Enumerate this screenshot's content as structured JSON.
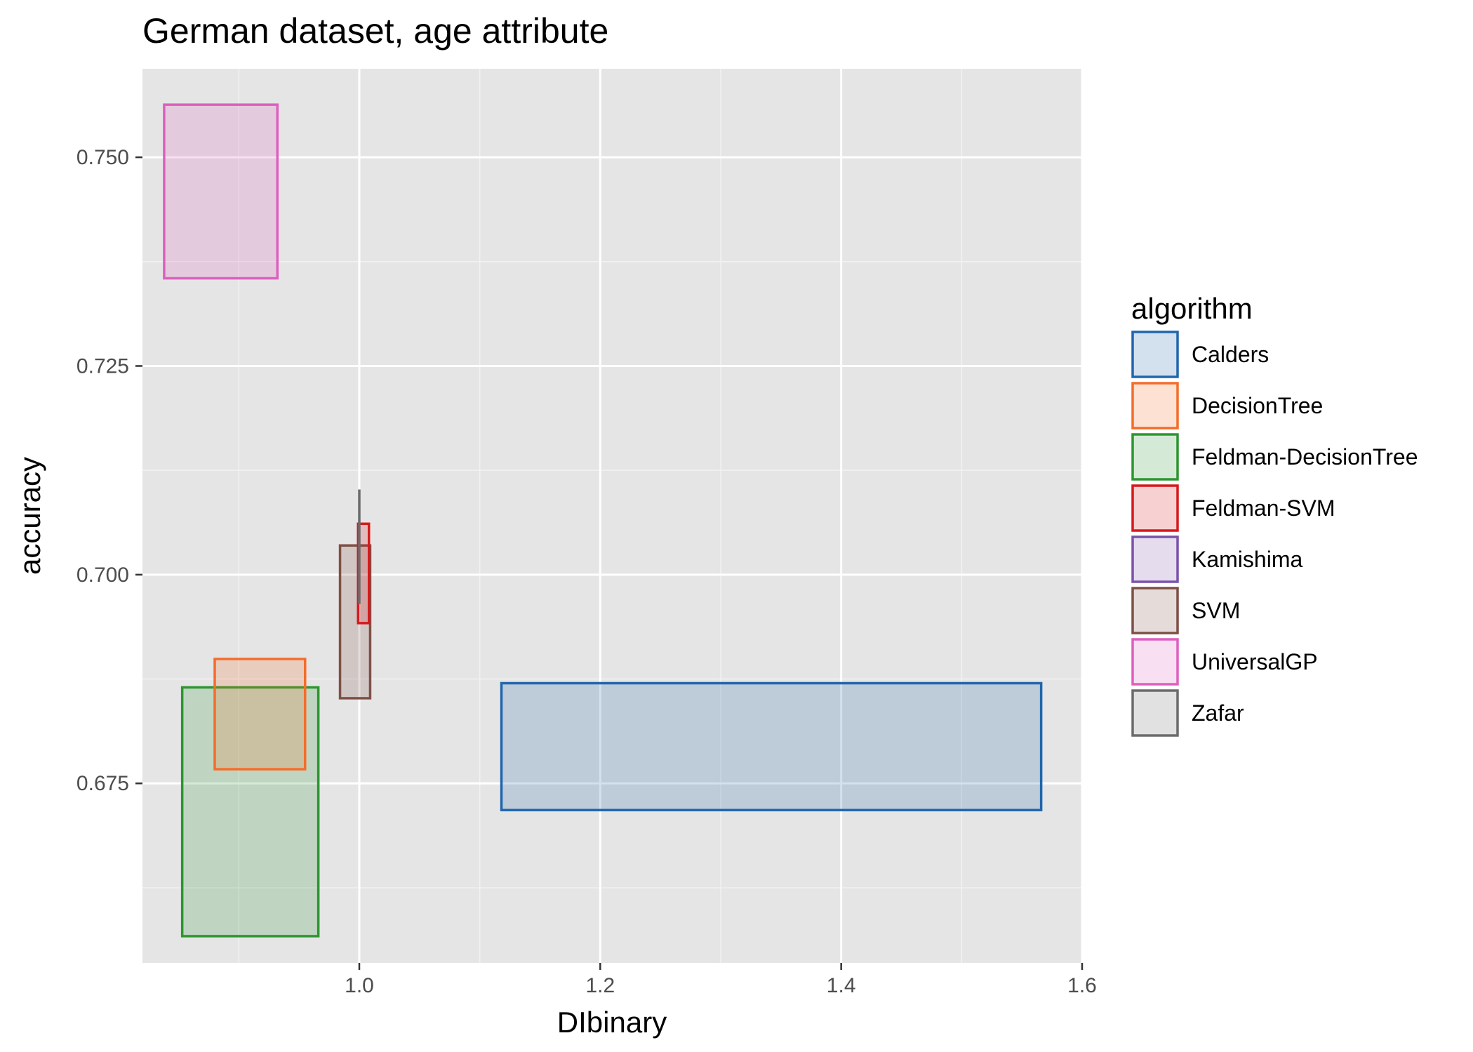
{
  "chart_data": {
    "type": "rect-ranges",
    "title": "German dataset, age attribute",
    "xlabel": "DIbinary",
    "ylabel": "accuracy",
    "xlim": [
      0.82,
      1.6
    ],
    "ylim": [
      0.6535,
      0.7606
    ],
    "x_ticks": [
      1.0,
      1.2,
      1.4,
      1.6
    ],
    "x_tick_labels": [
      "1.0",
      "1.2",
      "1.4",
      "1.6"
    ],
    "y_ticks": [
      0.675,
      0.7,
      0.725,
      0.75
    ],
    "y_tick_labels": [
      "0.675",
      "0.700",
      "0.725",
      "0.750"
    ],
    "grid": true,
    "legend": {
      "title": "algorithm",
      "position": "right"
    },
    "series": [
      {
        "name": "Calders",
        "color": "#2166ac",
        "xmin": 1.118,
        "xmax": 1.566,
        "ymin": 0.6718,
        "ymax": 0.687
      },
      {
        "name": "DecisionTree",
        "color": "#f46d2a",
        "xmin": 0.88,
        "xmax": 0.955,
        "ymin": 0.6767,
        "ymax": 0.6899
      },
      {
        "name": "Feldman-DecisionTree",
        "color": "#2c9630",
        "xmin": 0.853,
        "xmax": 0.966,
        "ymin": 0.6567,
        "ymax": 0.6865
      },
      {
        "name": "Feldman-SVM",
        "color": "#d7191c",
        "xmin": 0.999,
        "xmax": 1.008,
        "ymin": 0.6942,
        "ymax": 0.7061
      },
      {
        "name": "Kamishima",
        "color": "#7b52ab",
        "xmin": null,
        "xmax": null,
        "ymin": null,
        "ymax": null
      },
      {
        "name": "SVM",
        "color": "#7f4f45",
        "xmin": 0.984,
        "xmax": 1.009,
        "ymin": 0.6852,
        "ymax": 0.7035
      },
      {
        "name": "UniversalGP",
        "color": "#de5fbf",
        "xmin": 0.838,
        "xmax": 0.932,
        "ymin": 0.7355,
        "ymax": 0.7563
      },
      {
        "name": "Zafar",
        "color": "#6b6b6b",
        "xmin": 1.0,
        "xmax": 1.0,
        "ymin": 0.6965,
        "ymax": 0.7102
      }
    ]
  }
}
